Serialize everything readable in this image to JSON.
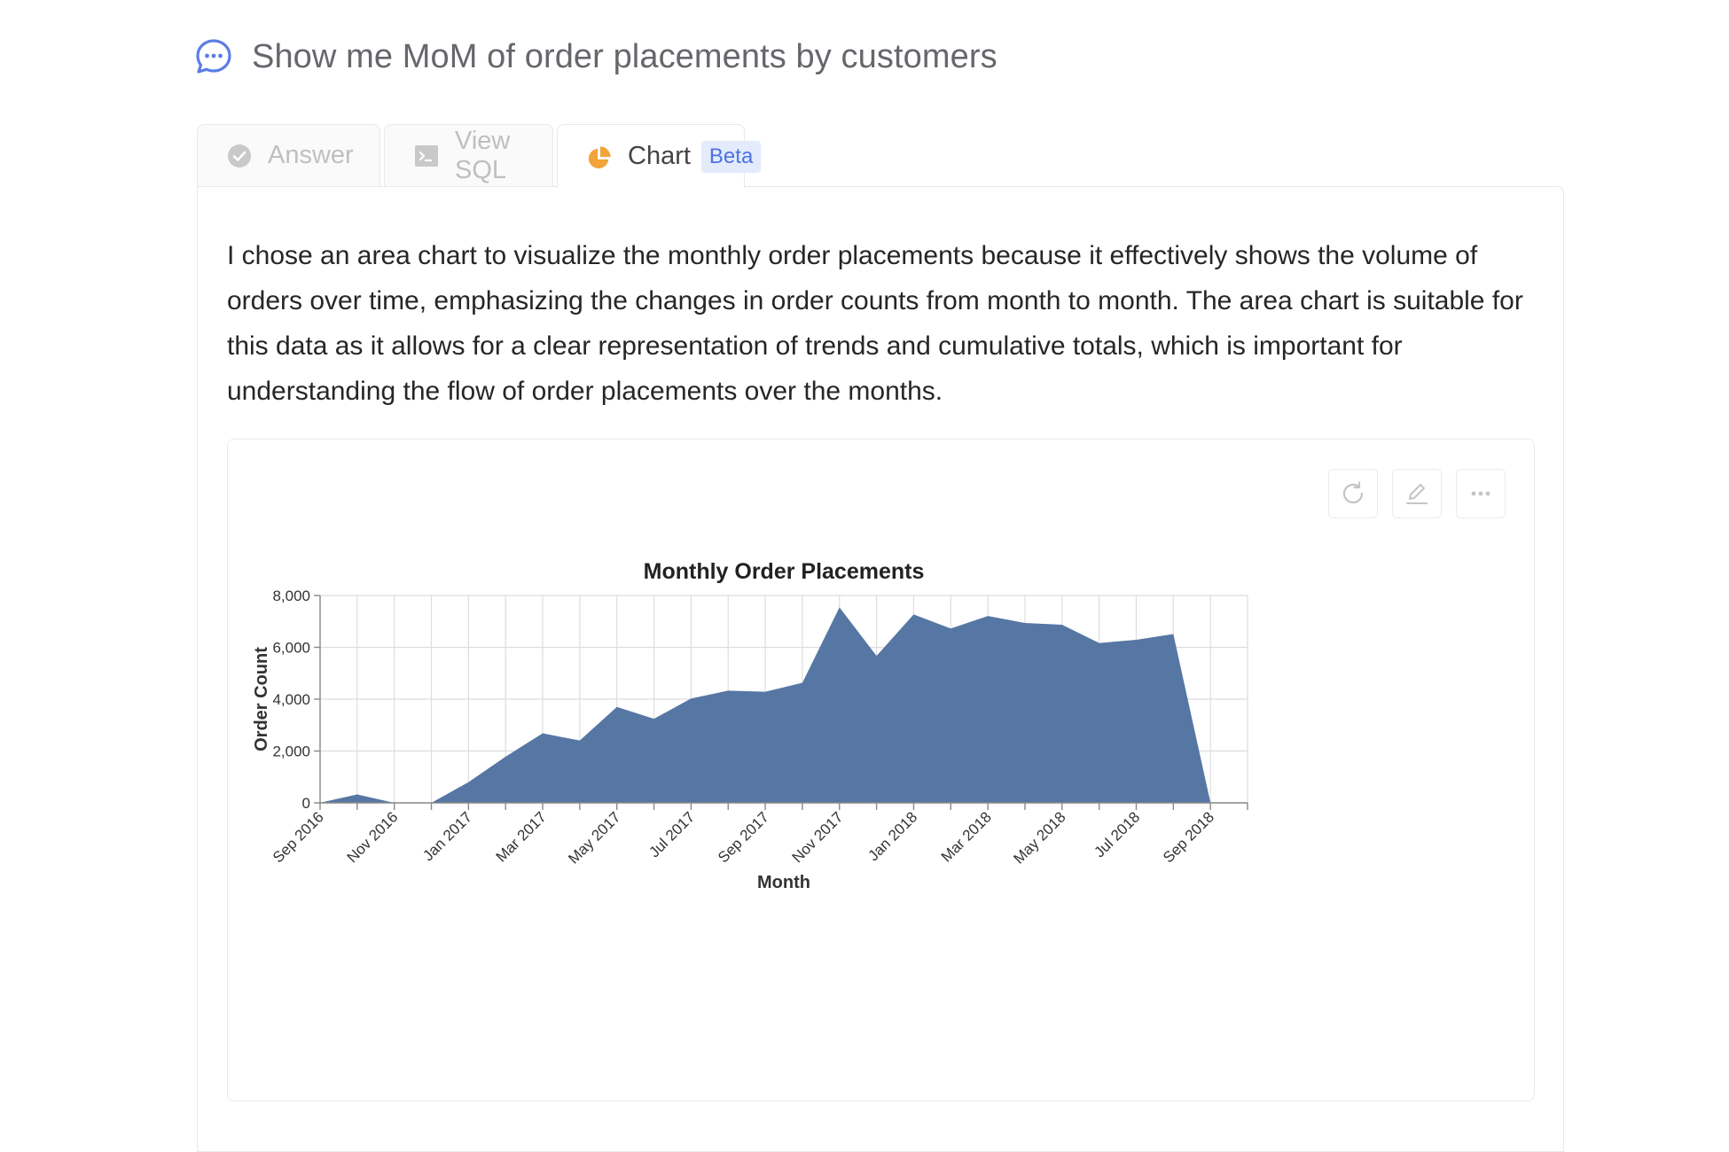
{
  "question": {
    "text": "Show me MoM of order placements by customers",
    "icon": "chat-bubble-icon",
    "icon_color": "#5b7de6"
  },
  "tabs": [
    {
      "label": "Answer",
      "icon": "check-circle-icon",
      "active": false
    },
    {
      "label": "View SQL",
      "icon": "terminal-icon",
      "active": false
    },
    {
      "label": "Chart",
      "icon": "pie-chart-icon",
      "active": true,
      "badge": "Beta"
    }
  ],
  "explanation": "I chose an area chart to visualize the monthly order placements because it effectively shows the volume of orders over time, emphasizing the changes in order counts from month to month. The area chart is suitable for this data as it allows for a clear representation of trends and cumulative totals, which is important for understanding the flow of order placements over the months.",
  "chart_actions": [
    {
      "name": "refresh-button",
      "icon": "refresh-icon"
    },
    {
      "name": "edit-button",
      "icon": "pencil-icon"
    },
    {
      "name": "more-button",
      "icon": "ellipsis-icon"
    }
  ],
  "colors": {
    "area_fill": "#5677a4",
    "accent": "#5b7de6",
    "pie_icon": "#f0a43a"
  },
  "chart_data": {
    "type": "area",
    "title": "Monthly Order Placements",
    "xlabel": "Month",
    "ylabel": "Order Count",
    "x": [
      "2016-09",
      "2016-10",
      "2016-11",
      "2016-12",
      "2017-01",
      "2017-02",
      "2017-03",
      "2017-04",
      "2017-05",
      "2017-06",
      "2017-07",
      "2017-08",
      "2017-09",
      "2017-10",
      "2017-11",
      "2017-12",
      "2018-01",
      "2018-02",
      "2018-03",
      "2018-04",
      "2018-05",
      "2018-06",
      "2018-07",
      "2018-08",
      "2018-09",
      "2018-10"
    ],
    "values": [
      4,
      324,
      1,
      0,
      800,
      1780,
      2682,
      2404,
      3700,
      3245,
      4026,
      4331,
      4285,
      4631,
      7544,
      5673,
      7269,
      6728,
      7211,
      6939,
      6873,
      6167,
      6292,
      6512,
      16,
      4
    ],
    "x_ticks": [
      "Sep 2016",
      "Nov 2016",
      "Jan 2017",
      "Mar 2017",
      "May 2017",
      "Jul 2017",
      "Sep 2017",
      "Nov 2017",
      "Jan 2018",
      "Mar 2018",
      "May 2018",
      "Jul 2018",
      "Sep 2018"
    ],
    "y_ticks": [
      "0",
      "2,000",
      "4,000",
      "6,000",
      "8,000"
    ],
    "ylim": [
      0,
      8000
    ],
    "xlim": [
      "2016-09",
      "2018-10"
    ],
    "grid": true,
    "legend": "none"
  }
}
